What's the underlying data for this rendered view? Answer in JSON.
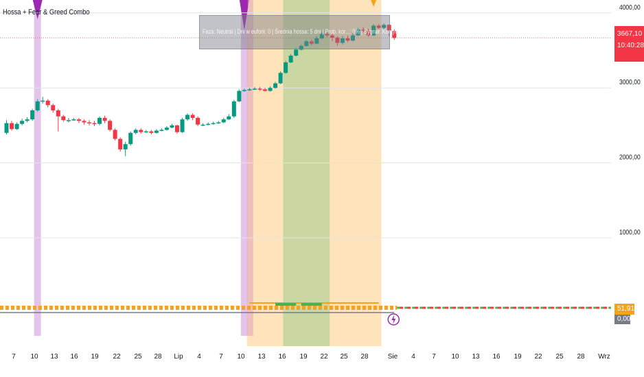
{
  "indicator_title": "Hossa + Fear & Greed Combo",
  "info_box_text": "Faza: Neutral | Dni w euforii: 0 | Średnia hossa: 5 dni | Prob. kor...: 0% | Sygnał: Kontynuacja",
  "price_badge": {
    "price": "3667,10",
    "time": "10:40:28",
    "color": "#f23645"
  },
  "indicator_badges": [
    {
      "value": "51,91",
      "color": "#f7a21b"
    },
    {
      "value": "0,00",
      "color": "#787b86"
    }
  ],
  "chart_data": {
    "type": "candlestick",
    "y_ticks": [
      "4000,00",
      "3000,00",
      "2000,00",
      "1000,00"
    ],
    "y_tick_values": [
      4000,
      3000,
      2000,
      1000
    ],
    "x_ticks": [
      "7",
      "10",
      "13",
      "16",
      "19",
      "22",
      "25",
      "28",
      "Lip",
      "4",
      "7",
      "10",
      "13",
      "16",
      "19",
      "22",
      "25",
      "28",
      "Sie",
      "4",
      "7",
      "10",
      "13",
      "16",
      "19",
      "22",
      "25",
      "28",
      "Wrz"
    ],
    "last_price": 3667.1,
    "candles": [
      [
        2400,
        2530,
        2570,
        2380
      ],
      [
        2530,
        2450,
        2560,
        2430
      ],
      [
        2450,
        2520,
        2540,
        2440
      ],
      [
        2520,
        2560,
        2590,
        2500
      ],
      [
        2560,
        2580,
        2610,
        2540
      ],
      [
        2580,
        2700,
        2720,
        2560
      ],
      [
        2700,
        2820,
        2850,
        2680
      ],
      [
        2820,
        2830,
        2880,
        2790
      ],
      [
        2830,
        2770,
        2850,
        2740
      ],
      [
        2770,
        2700,
        2790,
        2670
      ],
      [
        2700,
        2620,
        2720,
        2420
      ],
      [
        2620,
        2570,
        2640,
        2550
      ],
      [
        2570,
        2570,
        2600,
        2540
      ],
      [
        2570,
        2580,
        2600,
        2560
      ],
      [
        2580,
        2560,
        2600,
        2530
      ],
      [
        2560,
        2540,
        2580,
        2510
      ],
      [
        2540,
        2530,
        2570,
        2500
      ],
      [
        2530,
        2520,
        2560,
        2490
      ],
      [
        2520,
        2600,
        2620,
        2500
      ],
      [
        2600,
        2560,
        2630,
        2530
      ],
      [
        2560,
        2440,
        2580,
        2420
      ],
      [
        2440,
        2320,
        2460,
        2300
      ],
      [
        2320,
        2180,
        2340,
        2150
      ],
      [
        2180,
        2250,
        2280,
        2090
      ],
      [
        2250,
        2400,
        2420,
        2230
      ],
      [
        2400,
        2440,
        2460,
        2380
      ],
      [
        2440,
        2410,
        2460,
        2390
      ],
      [
        2410,
        2420,
        2440,
        2400
      ],
      [
        2420,
        2400,
        2440,
        2380
      ],
      [
        2400,
        2430,
        2450,
        2390
      ],
      [
        2430,
        2440,
        2460,
        2420
      ],
      [
        2440,
        2470,
        2490,
        2430
      ],
      [
        2470,
        2500,
        2520,
        2460
      ],
      [
        2500,
        2410,
        2510,
        2390
      ],
      [
        2410,
        2580,
        2600,
        2400
      ],
      [
        2580,
        2640,
        2660,
        2560
      ],
      [
        2640,
        2600,
        2660,
        2570
      ],
      [
        2600,
        2510,
        2620,
        2490
      ],
      [
        2510,
        2510,
        2530,
        2490
      ],
      [
        2510,
        2520,
        2540,
        2500
      ],
      [
        2520,
        2530,
        2550,
        2510
      ],
      [
        2530,
        2540,
        2560,
        2520
      ],
      [
        2540,
        2580,
        2600,
        2530
      ],
      [
        2580,
        2620,
        2650,
        2570
      ],
      [
        2620,
        2820,
        2840,
        2600
      ],
      [
        2820,
        2960,
        2980,
        2810
      ],
      [
        2960,
        2970,
        2990,
        2950
      ],
      [
        2970,
        2980,
        3000,
        2960
      ],
      [
        2980,
        2990,
        3010,
        2970
      ],
      [
        2990,
        2980,
        3010,
        2960
      ],
      [
        2980,
        2960,
        3000,
        2950
      ],
      [
        2960,
        3000,
        3020,
        2950
      ],
      [
        3000,
        3060,
        3080,
        2990
      ],
      [
        3060,
        3200,
        3220,
        3050
      ],
      [
        3200,
        3340,
        3360,
        3190
      ],
      [
        3340,
        3430,
        3450,
        3330
      ],
      [
        3430,
        3510,
        3530,
        3420
      ],
      [
        3510,
        3560,
        3580,
        3500
      ],
      [
        3560,
        3620,
        3640,
        3550
      ],
      [
        3620,
        3590,
        3640,
        3570
      ],
      [
        3590,
        3660,
        3690,
        3580
      ],
      [
        3660,
        3720,
        3740,
        3650
      ],
      [
        3720,
        3700,
        3750,
        3680
      ],
      [
        3700,
        3670,
        3720,
        3620
      ],
      [
        3670,
        3600,
        3690,
        3560
      ],
      [
        3600,
        3660,
        3690,
        3580
      ],
      [
        3660,
        3630,
        3700,
        3610
      ],
      [
        3630,
        3700,
        3740,
        3620
      ],
      [
        3700,
        3780,
        3800,
        3690
      ],
      [
        3780,
        3760,
        3810,
        3740
      ],
      [
        3760,
        3700,
        3790,
        3680
      ],
      [
        3700,
        3830,
        3850,
        3690
      ],
      [
        3830,
        3800,
        3850,
        3780
      ],
      [
        3800,
        3840,
        3860,
        3780
      ],
      [
        3840,
        3760,
        3850,
        3690
      ],
      [
        3760,
        3667,
        3780,
        3640
      ]
    ],
    "purple_signal_bars": [
      6,
      46
    ],
    "orange_signal_bar": 71,
    "bands": [
      {
        "from": 47,
        "to": 72,
        "color": "#ffe0b2",
        "label": "euphoria zone"
      },
      {
        "from": 54,
        "to": 58,
        "color": "#c5d5a0",
        "label": "greed zone 1"
      },
      {
        "from": 59,
        "to": 62,
        "color": "#c5d5a0",
        "label": "greed zone 2"
      }
    ],
    "indicator_value": 51.91,
    "indicator_zero": 0.0
  }
}
